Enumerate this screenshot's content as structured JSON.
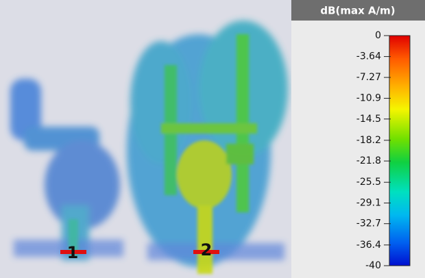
{
  "colorbar": {
    "title": "dB(max A/m)",
    "ticks": [
      0,
      -3.64,
      -7.27,
      -10.9,
      -14.5,
      -18.2,
      -21.8,
      -25.5,
      -29.1,
      -32.7,
      -36.4,
      -40
    ]
  },
  "ports": [
    {
      "label": "1"
    },
    {
      "label": "2"
    }
  ]
}
